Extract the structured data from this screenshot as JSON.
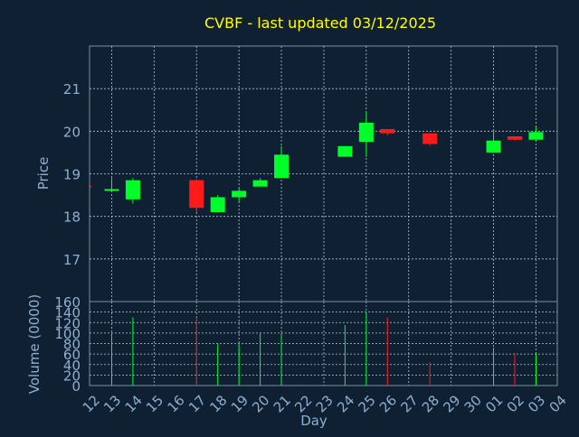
{
  "title": "CVBF - last updated 03/12/2025",
  "colors": {
    "background": "#0f2033",
    "frame": "#7a8ea6",
    "grid": "#b8c4d2",
    "title": "#ffff00",
    "axis_text": "#8eb0d0",
    "axis_label": "#8eb0d0",
    "up": "#00ff2a",
    "down": "#ff1a1a"
  },
  "chart_data": [
    {
      "type": "candlestick",
      "ylabel": "Price",
      "ylim": [
        16,
        22
      ],
      "yticks": [
        17,
        18,
        19,
        20,
        21
      ],
      "grid": true,
      "candles": [
        {
          "day": "12",
          "open": 18.7,
          "high": 18.7,
          "low": 18.7,
          "close": 18.7,
          "dir": "down"
        },
        {
          "day": "13",
          "open": 18.6,
          "high": 18.9,
          "low": 18.58,
          "close": 18.62,
          "dir": "up"
        },
        {
          "day": "14",
          "open": 18.4,
          "high": 18.9,
          "low": 18.3,
          "close": 18.85,
          "dir": "up"
        },
        {
          "day": "17",
          "open": 18.85,
          "high": 18.85,
          "low": 18.1,
          "close": 18.2,
          "dir": "down"
        },
        {
          "day": "18",
          "open": 18.1,
          "high": 18.5,
          "low": 18.1,
          "close": 18.45,
          "dir": "up"
        },
        {
          "day": "19",
          "open": 18.45,
          "high": 18.65,
          "low": 18.35,
          "close": 18.6,
          "dir": "up"
        },
        {
          "day": "20",
          "open": 18.7,
          "high": 18.9,
          "low": 18.7,
          "close": 18.85,
          "dir": "up"
        },
        {
          "day": "21",
          "open": 18.9,
          "high": 19.65,
          "low": 18.9,
          "close": 19.45,
          "dir": "up"
        },
        {
          "day": "24",
          "open": 19.4,
          "high": 19.65,
          "low": 19.4,
          "close": 19.65,
          "dir": "up"
        },
        {
          "day": "25",
          "open": 19.75,
          "high": 20.45,
          "low": 19.4,
          "close": 20.2,
          "dir": "up"
        },
        {
          "day": "26",
          "open": 20.05,
          "high": 20.05,
          "low": 19.9,
          "close": 19.95,
          "dir": "down"
        },
        {
          "day": "28",
          "open": 19.95,
          "high": 19.95,
          "low": 19.65,
          "close": 19.7,
          "dir": "down"
        },
        {
          "day": "01",
          "open": 19.5,
          "high": 20.0,
          "low": 19.5,
          "close": 19.78,
          "dir": "up"
        },
        {
          "day": "02",
          "open": 19.88,
          "high": 19.88,
          "low": 19.78,
          "close": 19.8,
          "dir": "down"
        },
        {
          "day": "03",
          "open": 19.8,
          "high": 20.1,
          "low": 19.8,
          "close": 19.98,
          "dir": "up"
        }
      ]
    },
    {
      "type": "bar",
      "ylabel": "Volume (0000)",
      "ylim": [
        0,
        160
      ],
      "yticks": [
        0,
        20,
        40,
        60,
        80,
        100,
        120,
        140,
        160
      ],
      "grid": true,
      "categories": [
        "12",
        "13",
        "14",
        "15",
        "16",
        "17",
        "18",
        "19",
        "20",
        "21",
        "22",
        "23",
        "24",
        "25",
        "26",
        "27",
        "28",
        "29",
        "30",
        "01",
        "02",
        "03",
        "04"
      ],
      "xlabel": "Day",
      "values": [
        0,
        100,
        130,
        0,
        0,
        130,
        80,
        80,
        100,
        100,
        0,
        0,
        115,
        140,
        130,
        0,
        45,
        0,
        0,
        72,
        62,
        60,
        0
      ],
      "bar_dirs": [
        "",
        "up",
        "up",
        "",
        "",
        "down",
        "up",
        "up",
        "up",
        "up",
        "",
        "",
        "up",
        "up",
        "down",
        "",
        "down",
        "",
        "",
        "up",
        "down",
        "up",
        ""
      ]
    }
  ]
}
